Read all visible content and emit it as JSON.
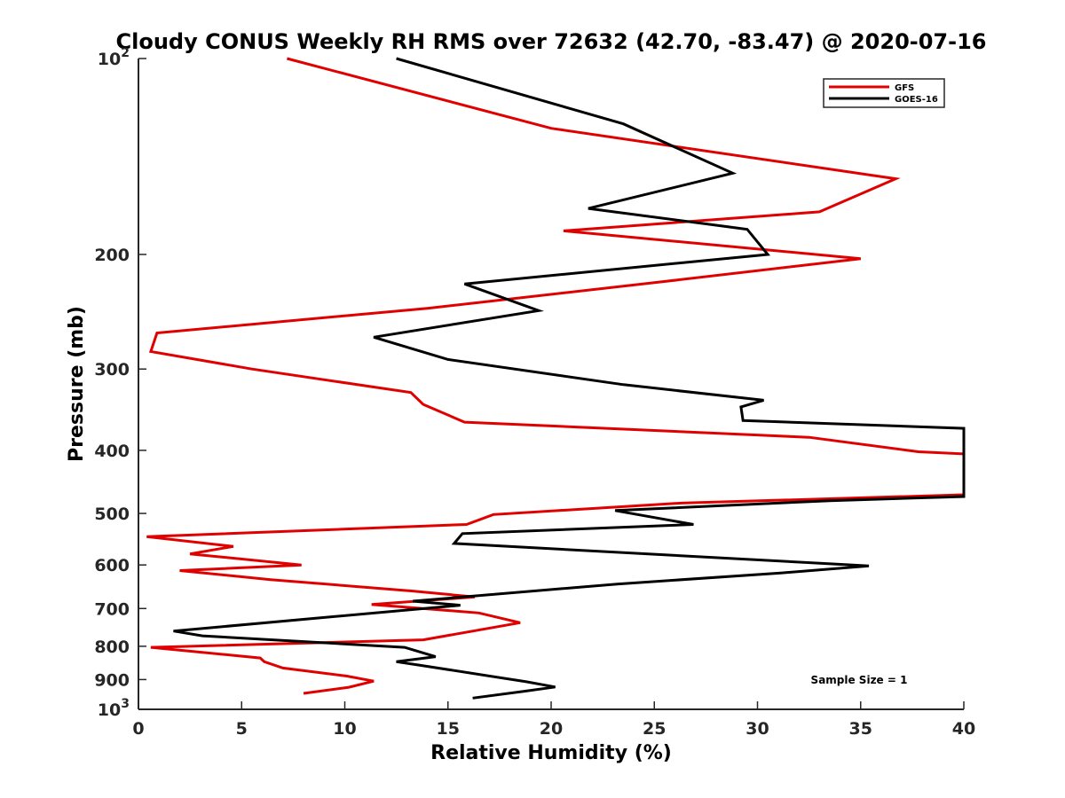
{
  "chart_data": {
    "type": "line",
    "title": "Cloudy CONUS Weekly RH RMS over 72632 (42.70, -83.47) @ 2020-07-16",
    "xlabel": "Relative Humidity (%)",
    "ylabel": "Pressure (mb)",
    "xlim": [
      0,
      40
    ],
    "ylim": [
      100,
      1000
    ],
    "y_scale": "log",
    "y_reversed": true,
    "grid": false,
    "legend_position": "top-right",
    "x_ticks": [
      "0",
      "5",
      "10",
      "15",
      "20",
      "25",
      "30",
      "35",
      "40"
    ],
    "y_ticks": [
      {
        "value": 100,
        "base": "10",
        "exp": "2"
      },
      {
        "value": 200,
        "label": "200"
      },
      {
        "value": 300,
        "label": "300"
      },
      {
        "value": 400,
        "label": "400"
      },
      {
        "value": 500,
        "label": "500"
      },
      {
        "value": 600,
        "label": "600"
      },
      {
        "value": 700,
        "label": "700"
      },
      {
        "value": 800,
        "label": "800"
      },
      {
        "value": 900,
        "label": "900"
      },
      {
        "value": 1000,
        "base": "10",
        "exp": "3"
      }
    ],
    "annotation": "Sample Size = 1",
    "series": [
      {
        "name": "GFS",
        "color": "#e00000",
        "points": [
          [
            7.2,
            100
          ],
          [
            20.0,
            128
          ],
          [
            36.7,
            153
          ],
          [
            33.0,
            172
          ],
          [
            20.6,
            184
          ],
          [
            35.0,
            203
          ],
          [
            25.0,
            221
          ],
          [
            14.0,
            242
          ],
          [
            0.9,
            264
          ],
          [
            0.6,
            282
          ],
          [
            5.5,
            300
          ],
          [
            13.2,
            326
          ],
          [
            13.8,
            340
          ],
          [
            15.8,
            362
          ],
          [
            32.5,
            382
          ],
          [
            37.8,
            402
          ],
          [
            40.0,
            405
          ],
          [
            40.0,
            468
          ],
          [
            26.3,
            482
          ],
          [
            17.2,
            502
          ],
          [
            15.9,
            520
          ],
          [
            0.4,
            543
          ],
          [
            4.6,
            562
          ],
          [
            2.5,
            577
          ],
          [
            7.9,
            600
          ],
          [
            2.0,
            612
          ],
          [
            6.4,
            632
          ],
          [
            13.3,
            658
          ],
          [
            16.3,
            672
          ],
          [
            11.3,
            690
          ],
          [
            16.5,
            711
          ],
          [
            18.5,
            736
          ],
          [
            13.8,
            782
          ],
          [
            0.6,
            803
          ],
          [
            5.9,
            834
          ],
          [
            6.1,
            845
          ],
          [
            7.0,
            864
          ],
          [
            10.1,
            889
          ],
          [
            11.4,
            905
          ],
          [
            10.2,
            925
          ],
          [
            8.0,
            945
          ]
        ]
      },
      {
        "name": "GOES-16",
        "color": "#000000",
        "points": [
          [
            12.5,
            100
          ],
          [
            23.5,
            126
          ],
          [
            28.8,
            150
          ],
          [
            21.8,
            170
          ],
          [
            29.5,
            183
          ],
          [
            30.5,
            200
          ],
          [
            15.8,
            222
          ],
          [
            19.4,
            244
          ],
          [
            11.4,
            268
          ],
          [
            15.0,
            290
          ],
          [
            23.5,
            317
          ],
          [
            30.3,
            335
          ],
          [
            29.2,
            343
          ],
          [
            29.3,
            360
          ],
          [
            40.0,
            370
          ],
          [
            40.0,
            471
          ],
          [
            33.5,
            478
          ],
          [
            23.1,
            495
          ],
          [
            26.9,
            520
          ],
          [
            15.7,
            537
          ],
          [
            15.3,
            556
          ],
          [
            35.4,
            602
          ],
          [
            31.2,
            617
          ],
          [
            23.2,
            642
          ],
          [
            13.3,
            682
          ],
          [
            15.6,
            692
          ],
          [
            1.7,
            758
          ],
          [
            3.1,
            771
          ],
          [
            12.9,
            803
          ],
          [
            14.4,
            830
          ],
          [
            12.5,
            845
          ],
          [
            13.6,
            855
          ],
          [
            18.8,
            907
          ],
          [
            20.2,
            924
          ],
          [
            18.7,
            938
          ],
          [
            16.2,
            961
          ]
        ]
      }
    ]
  }
}
